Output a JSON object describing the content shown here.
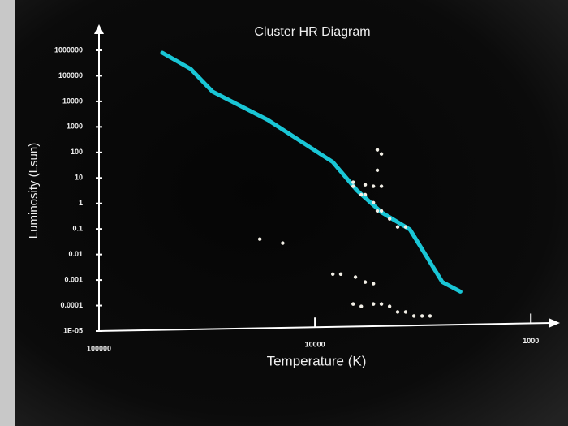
{
  "chart_data": {
    "type": "scatter",
    "title": "Cluster HR Diagram",
    "x_label": "Temperature (K)",
    "y_label": "Luminosity (Lsun)",
    "xscale": "log",
    "yscale": "log",
    "xlim": [
      100000,
      800
    ],
    "ylim": [
      1e-05,
      1000000
    ],
    "xticks": [
      100000,
      10000,
      1000
    ],
    "yticks": [
      {
        "value": 1e-05,
        "label": "1E-05"
      },
      0.0001,
      0.001,
      0.01,
      0.1,
      1,
      10,
      100,
      1000,
      10000,
      100000,
      1000000
    ],
    "line": {
      "color": "#19c6d6",
      "x": [
        50900,
        37600,
        29800,
        16500,
        8260,
        6380,
        4920,
        3630,
        2570,
        2120
      ],
      "y": [
        800000,
        186000,
        24000,
        1860,
        42,
        3.2,
        0.45,
        0.095,
        0.00083,
        0.00035
      ]
    },
    "points": {
      "color": "#f2efe6",
      "x": [
        18000,
        14100,
        8260,
        7590,
        6490,
        5850,
        5360,
        6650,
        6100,
        5360,
        4920,
        4510,
        4140,
        3800,
        3480,
        3190,
        2930,
        5140,
        4920,
        5140,
        6650,
        5850,
        5360,
        6100,
        5360,
        4920,
        4510,
        4140,
        3800,
        5850,
        5140,
        4920,
        6650
      ],
      "y": [
        0.04,
        0.028,
        0.0017,
        0.0017,
        0.0013,
        0.00083,
        0.00072,
        0.000115,
        9.3e-05,
        0.000115,
        0.000115,
        9.3e-05,
        5.6e-05,
        5.6e-05,
        3.9e-05,
        3.9e-05,
        3.9e-05,
        126,
        87,
        20,
        6.8,
        5.4,
        4.7,
        2.2,
        1.07,
        0.51,
        0.25,
        0.12,
        0.12,
        2.2,
        0.51,
        4.7,
        4.7
      ]
    }
  }
}
